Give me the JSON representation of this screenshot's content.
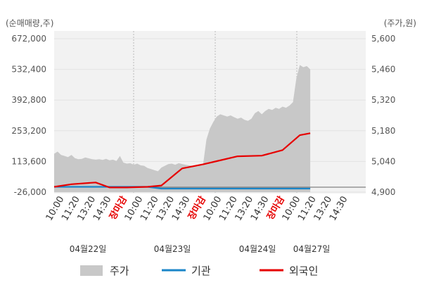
{
  "chart_data": {
    "type": "area",
    "left_unit": "(순매매량,주)",
    "right_unit": "(주가,원)",
    "left_ticks": [
      "672,000",
      "532,400",
      "392,800",
      "253,200",
      "113,600",
      "-26,000"
    ],
    "left_tick_values": [
      672000,
      532400,
      392800,
      253200,
      113600,
      -26000
    ],
    "right_ticks": [
      "5,600",
      "5,460",
      "5,320",
      "5,180",
      "5,040",
      "4,900"
    ],
    "right_tick_values": [
      5600,
      5460,
      5320,
      5180,
      5040,
      4900
    ],
    "ylim_left": [
      -26000,
      672000
    ],
    "ylim_right": [
      4900,
      5600
    ],
    "x_labels": [
      "10:00",
      "11:20",
      "13:20",
      "14:30",
      "장마감",
      "10:00",
      "11:20",
      "13:20",
      "14:30",
      "장마감",
      "10:00",
      "11:20",
      "13:20",
      "14:30",
      "장마감",
      "10:00",
      "11:20",
      "13:20",
      "14:30"
    ],
    "close_label": "장마감",
    "dates": [
      "04월22일",
      "04월23일",
      "04월24일",
      "04월27일"
    ],
    "legend": [
      "주가",
      "기관",
      "외국인"
    ],
    "colors": {
      "price": "#c8c8c8",
      "institution": "#1a85c8",
      "foreigner": "#e60000"
    },
    "series": [
      {
        "name": "주가",
        "axis": "right",
        "x": [
          0,
          1,
          2,
          3,
          4,
          5,
          6,
          7,
          8,
          9,
          10,
          11,
          12,
          13,
          14,
          15,
          16,
          17,
          18,
          19,
          20,
          21,
          22,
          23,
          24,
          25,
          26,
          27,
          28,
          29,
          30,
          31,
          32,
          33,
          34,
          35,
          36,
          37,
          38,
          39,
          40,
          41,
          42,
          43,
          44,
          45,
          46,
          47,
          48,
          49,
          50,
          51,
          52,
          53,
          54,
          55,
          56,
          57,
          58,
          59,
          60,
          61,
          62,
          63,
          64,
          65,
          66,
          67,
          68,
          69,
          70,
          71,
          72,
          73,
          74
        ],
        "values": [
          5075,
          5085,
          5070,
          5065,
          5060,
          5070,
          5055,
          5050,
          5052,
          5058,
          5054,
          5050,
          5048,
          5050,
          5047,
          5052,
          5045,
          5048,
          5042,
          5065,
          5035,
          5030,
          5032,
          5025,
          5030,
          5022,
          5020,
          5010,
          5005,
          5000,
          4995,
          5012,
          5020,
          5028,
          5030,
          5025,
          5032,
          5028,
          5025,
          5022,
          5020,
          5022,
          5025,
          5022,
          5140,
          5190,
          5220,
          5245,
          5255,
          5250,
          5245,
          5250,
          5242,
          5235,
          5240,
          5230,
          5225,
          5235,
          5260,
          5270,
          5255,
          5270,
          5280,
          5275,
          5285,
          5280,
          5290,
          5285,
          5295,
          5310,
          5420,
          5480,
          5470,
          5475,
          5460
        ]
      },
      {
        "name": "기관",
        "axis": "left",
        "x": [
          0,
          27,
          31,
          74
        ],
        "values": [
          -2000,
          -2000,
          -10000,
          -10000
        ]
      },
      {
        "name": "외국인",
        "axis": "left",
        "x": [
          0,
          5,
          12,
          16,
          21,
          27,
          31,
          37,
          43,
          47,
          53,
          60,
          66,
          71,
          74
        ],
        "values": [
          -2000,
          10000,
          18000,
          -5000,
          -5000,
          -2000,
          4000,
          82000,
          100000,
          115000,
          137000,
          140000,
          165000,
          233000,
          242000
        ]
      }
    ],
    "grid": true,
    "legend_position": "bottom"
  }
}
